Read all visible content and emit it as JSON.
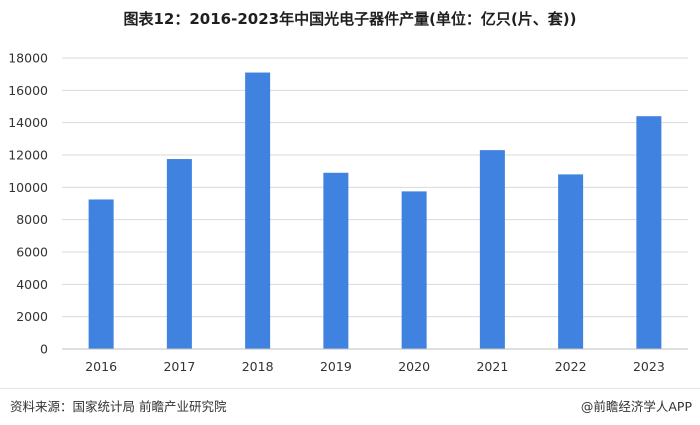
{
  "chart_data": {
    "type": "bar",
    "title": "图表12：2016-2023年中国光电子器件产量(单位：亿只(片、套))",
    "categories": [
      "2016",
      "2017",
      "2018",
      "2019",
      "2020",
      "2021",
      "2022",
      "2023"
    ],
    "values": [
      9250,
      11750,
      17100,
      10900,
      9750,
      12300,
      10800,
      14400
    ],
    "ylim": [
      0,
      18000
    ],
    "yticks": [
      0,
      2000,
      4000,
      6000,
      8000,
      10000,
      12000,
      14000,
      16000,
      18000
    ],
    "grid": true,
    "bar_color": "#3f82e0",
    "grid_color": "#d9d9d9"
  },
  "footer": {
    "source": "资料来源：国家统计局 前瞻产业研究院",
    "brand": "@前瞻经济学人APP"
  }
}
